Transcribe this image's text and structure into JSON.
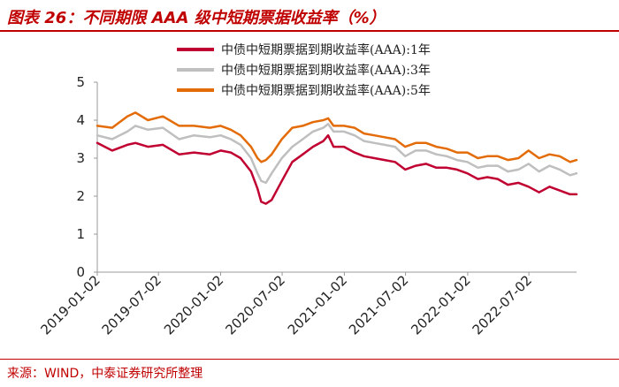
{
  "figure": {
    "title": "图表 26：不同期限 AAA 级中短期票据收益率（%）",
    "source": "来源：WIND，中泰证券研究所整理"
  },
  "colors": {
    "title": "#c00000",
    "series_1y": "#c00030",
    "series_3y": "#bfbfbf",
    "series_5y": "#e36c09",
    "axis": "#999999"
  },
  "chart_data": {
    "type": "line",
    "title": "",
    "xlabel": "",
    "ylabel": "",
    "ylim": [
      0,
      5
    ],
    "yticks": [
      0,
      1,
      2,
      3,
      4,
      5
    ],
    "xlim": [
      "2019-01-02",
      "2022-11-20"
    ],
    "xticks": [
      "2019-01-02",
      "2019-07-02",
      "2020-01-02",
      "2020-07-02",
      "2021-01-02",
      "2021-07-02",
      "2022-01-02",
      "2022-07-02"
    ],
    "grid": false,
    "legend_position": "top-right",
    "x": [
      "2019-01-02",
      "2019-02-15",
      "2019-04-01",
      "2019-04-25",
      "2019-06-01",
      "2019-07-15",
      "2019-09-01",
      "2019-10-15",
      "2019-12-01",
      "2020-01-02",
      "2020-02-01",
      "2020-03-01",
      "2020-04-01",
      "2020-04-20",
      "2020-05-01",
      "2020-05-15",
      "2020-06-01",
      "2020-07-01",
      "2020-08-01",
      "2020-09-01",
      "2020-10-01",
      "2020-11-01",
      "2020-11-15",
      "2020-12-01",
      "2021-01-01",
      "2021-02-01",
      "2021-03-01",
      "2021-04-01",
      "2021-05-01",
      "2021-06-01",
      "2021-07-01",
      "2021-08-01",
      "2021-09-01",
      "2021-10-01",
      "2021-11-01",
      "2021-12-01",
      "2022-01-01",
      "2022-02-01",
      "2022-03-01",
      "2022-04-01",
      "2022-05-01",
      "2022-06-01",
      "2022-07-01",
      "2022-08-01",
      "2022-09-01",
      "2022-10-01",
      "2022-11-01",
      "2022-11-20"
    ],
    "series": [
      {
        "name": "中债中短期票据到期收益率(AAA):1年",
        "values": [
          3.4,
          3.2,
          3.35,
          3.4,
          3.3,
          3.35,
          3.1,
          3.15,
          3.1,
          3.2,
          3.15,
          3.0,
          2.65,
          2.2,
          1.85,
          1.8,
          1.9,
          2.4,
          2.9,
          3.1,
          3.3,
          3.45,
          3.6,
          3.3,
          3.3,
          3.15,
          3.05,
          3.0,
          2.95,
          2.9,
          2.7,
          2.8,
          2.85,
          2.75,
          2.75,
          2.7,
          2.6,
          2.45,
          2.5,
          2.45,
          2.3,
          2.35,
          2.25,
          2.1,
          2.25,
          2.15,
          2.05,
          2.05
        ]
      },
      {
        "name": "中债中短期票据到期收益率(AAA):3年",
        "values": [
          3.6,
          3.5,
          3.7,
          3.85,
          3.75,
          3.8,
          3.5,
          3.6,
          3.55,
          3.6,
          3.5,
          3.35,
          3.0,
          2.6,
          2.4,
          2.35,
          2.6,
          3.0,
          3.3,
          3.5,
          3.7,
          3.8,
          3.9,
          3.7,
          3.7,
          3.6,
          3.45,
          3.4,
          3.35,
          3.3,
          3.05,
          3.2,
          3.2,
          3.1,
          3.05,
          2.95,
          2.9,
          2.75,
          2.8,
          2.8,
          2.65,
          2.7,
          2.85,
          2.65,
          2.8,
          2.7,
          2.55,
          2.6
        ]
      },
      {
        "name": "中债中短期票据到期收益率(AAA):5年",
        "values": [
          3.85,
          3.8,
          4.1,
          4.2,
          4.0,
          4.1,
          3.85,
          3.85,
          3.8,
          3.85,
          3.75,
          3.6,
          3.3,
          3.0,
          2.9,
          2.95,
          3.1,
          3.5,
          3.8,
          3.85,
          3.95,
          4.0,
          4.05,
          3.85,
          3.85,
          3.8,
          3.65,
          3.6,
          3.55,
          3.5,
          3.3,
          3.4,
          3.4,
          3.3,
          3.25,
          3.15,
          3.15,
          3.0,
          3.05,
          3.05,
          2.95,
          3.0,
          3.2,
          3.0,
          3.1,
          3.05,
          2.9,
          2.95
        ]
      }
    ]
  }
}
